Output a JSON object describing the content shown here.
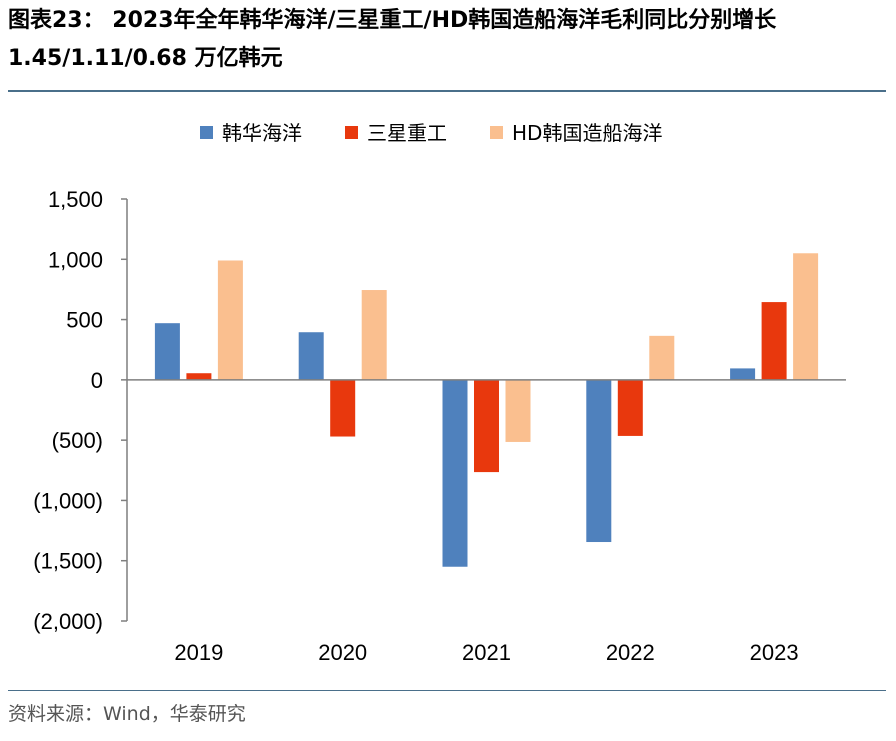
{
  "header": {
    "title": "图表23： 2023年全年韩华海洋/三星重工/HD韩国造船海洋毛利同比分别增长 1.45/1.11/0.68 万亿韩元"
  },
  "footer": {
    "source": "资料来源：Wind，华泰研究"
  },
  "colors": {
    "series_1": "#4f81bd",
    "series_2": "#e8380d",
    "series_3": "#fabf8f",
    "axis": "#7f7f7f",
    "rule": "#4a6f8a"
  },
  "chart_data": {
    "type": "bar",
    "title": "",
    "xlabel": "",
    "ylabel": "",
    "categories": [
      "2019",
      "2020",
      "2021",
      "2022",
      "2023"
    ],
    "series": [
      {
        "name": "韩华海洋",
        "values": [
          470,
          395,
          -1550,
          -1345,
          95
        ]
      },
      {
        "name": "三星重工",
        "values": [
          55,
          -470,
          -765,
          -465,
          645
        ]
      },
      {
        "name": "HD韩国造船海洋",
        "values": [
          990,
          745,
          -515,
          365,
          1050
        ]
      }
    ],
    "ylim": [
      -2000,
      1500
    ],
    "yticks": [
      1500,
      1000,
      500,
      0,
      -500,
      -1000,
      -1500,
      -2000
    ],
    "ytick_labels": [
      "1,500",
      "1,000",
      "500",
      "0",
      "(500)",
      "(1,000)",
      "(1,500)",
      "(2,000)"
    ],
    "grid": false,
    "legend_position": "top"
  }
}
